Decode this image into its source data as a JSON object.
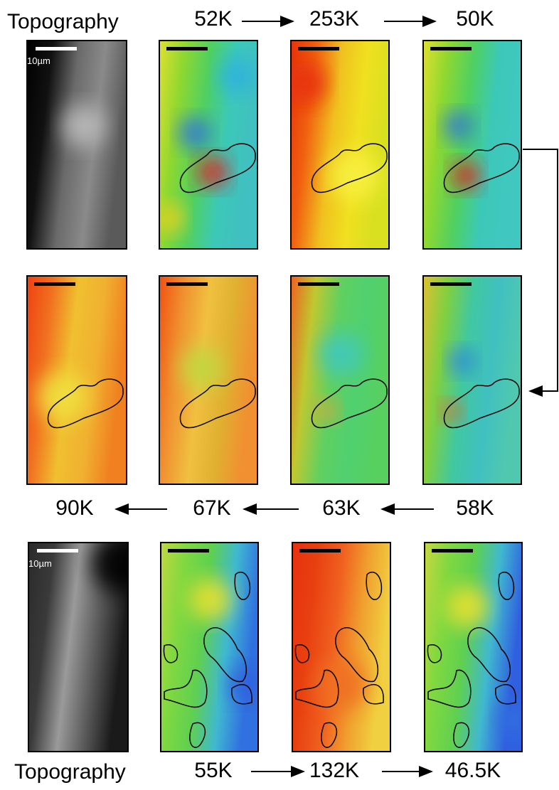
{
  "top_row": {
    "label": "Topography",
    "scale_label": "10µm",
    "temperatures": [
      "52K",
      "253K",
      "50K"
    ]
  },
  "middle_row": {
    "temperatures": [
      "90K",
      "67K",
      "63K",
      "58K"
    ]
  },
  "bottom_row": {
    "label": "Topography",
    "scale_label": "10µm",
    "temperatures": [
      "55K",
      "132K",
      "46.5K"
    ]
  }
}
